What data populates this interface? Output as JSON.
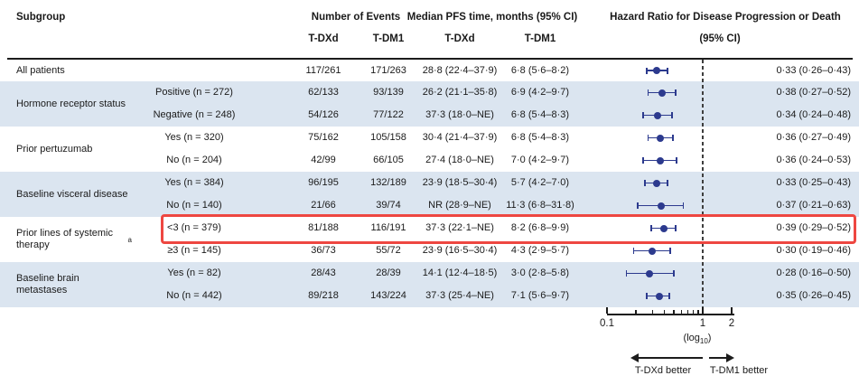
{
  "header": {
    "subgroup": "Subgroup",
    "events": "Number of Events",
    "median": "Median PFS time, months (95% CI)",
    "hazard": "Hazard Ratio for Disease Progression or Death",
    "hazard_sub": "(95% CI)",
    "col_tdxd": "T-DXd",
    "col_tdm1": "T-DM1"
  },
  "colors": {
    "band_blue": "#dbe5f0",
    "marker_navy": "#2c3a8e",
    "highlight_red": "#ee4741",
    "reference_dash": "#3e3e3e",
    "text": "#1a1a1a"
  },
  "chart_data": {
    "type": "scatter",
    "variant": "forest-plot",
    "x_axis": {
      "scale": "log10",
      "range": [
        0.1,
        2
      ],
      "ticks": [
        0.1,
        0.2,
        0.3,
        0.4,
        0.5,
        0.6,
        0.7,
        0.8,
        0.9,
        1,
        2
      ],
      "labeled_ticks": [
        "0.1",
        "1",
        "2"
      ],
      "reference_line": 1,
      "scale_note": "(log10)"
    },
    "groups": [
      {
        "label": "All patients",
        "label_sup": "",
        "shaded": false,
        "rows": [
          {
            "sublabel": "",
            "events_tdxd": "117/261",
            "events_tdm1": "171/263",
            "median_tdxd": "28·8 (22·4–37·9)",
            "median_tdm1": "6·8 (5·6–8·2)",
            "hr": 0.33,
            "ci_low": 0.26,
            "ci_high": 0.43,
            "hr_text": "0·33 (0·26–0·43)",
            "highlighted": false
          }
        ]
      },
      {
        "label": "Hormone receptor status",
        "label_sup": "",
        "shaded": true,
        "rows": [
          {
            "sublabel": "Positive (n = 272)",
            "events_tdxd": "62/133",
            "events_tdm1": "93/139",
            "median_tdxd": "26·2 (21·1–35·8)",
            "median_tdm1": "6·9 (4·2–9·7)",
            "hr": 0.38,
            "ci_low": 0.27,
            "ci_high": 0.52,
            "hr_text": "0·38 (0·27–0·52)",
            "highlighted": false
          },
          {
            "sublabel": "Negative (n = 248)",
            "events_tdxd": "54/126",
            "events_tdm1": "77/122",
            "median_tdxd": "37·3 (18·0–NE)",
            "median_tdm1": "6·8 (5·4–8·3)",
            "hr": 0.34,
            "ci_low": 0.24,
            "ci_high": 0.48,
            "hr_text": "0·34 (0·24–0·48)",
            "highlighted": false
          }
        ]
      },
      {
        "label": "Prior pertuzumab",
        "label_sup": "",
        "shaded": false,
        "rows": [
          {
            "sublabel": "Yes (n = 320)",
            "events_tdxd": "75/162",
            "events_tdm1": "105/158",
            "median_tdxd": "30·4 (21·4–37·9)",
            "median_tdm1": "6·8 (5·4–8·3)",
            "hr": 0.36,
            "ci_low": 0.27,
            "ci_high": 0.49,
            "hr_text": "0·36 (0·27–0·49)",
            "highlighted": false
          },
          {
            "sublabel": "No (n = 204)",
            "events_tdxd": "42/99",
            "events_tdm1": "66/105",
            "median_tdxd": "27·4 (18·0–NE)",
            "median_tdm1": "7·0 (4·2–9·7)",
            "hr": 0.36,
            "ci_low": 0.24,
            "ci_high": 0.53,
            "hr_text": "0·36 (0·24–0·53)",
            "highlighted": false
          }
        ]
      },
      {
        "label": "Baseline visceral disease",
        "label_sup": "",
        "shaded": true,
        "rows": [
          {
            "sublabel": "Yes (n = 384)",
            "events_tdxd": "96/195",
            "events_tdm1": "132/189",
            "median_tdxd": "23·9 (18·5–30·4)",
            "median_tdm1": "5·7 (4·2–7·0)",
            "hr": 0.33,
            "ci_low": 0.25,
            "ci_high": 0.43,
            "hr_text": "0·33 (0·25–0·43)",
            "highlighted": false
          },
          {
            "sublabel": "No (n = 140)",
            "events_tdxd": "21/66",
            "events_tdm1": "39/74",
            "median_tdxd": "NR (28·9–NE)",
            "median_tdm1": "11·3 (6·8–31·8)",
            "hr": 0.37,
            "ci_low": 0.21,
            "ci_high": 0.63,
            "hr_text": "0·37 (0·21–0·63)",
            "highlighted": false
          }
        ]
      },
      {
        "label": "Prior lines of systemic therapy",
        "label_sup": "a",
        "shaded": false,
        "rows": [
          {
            "sublabel": "<3 (n = 379)",
            "events_tdxd": "81/188",
            "events_tdm1": "116/191",
            "median_tdxd": "37·3 (22·1–NE)",
            "median_tdm1": "8·2 (6·8–9·9)",
            "hr": 0.39,
            "ci_low": 0.29,
            "ci_high": 0.52,
            "hr_text": "0·39 (0·29–0·52)",
            "highlighted": true
          },
          {
            "sublabel": "≥3 (n = 145)",
            "events_tdxd": "36/73",
            "events_tdm1": "55/72",
            "median_tdxd": "23·9 (16·5–30·4)",
            "median_tdm1": "4·3 (2·9–5·7)",
            "hr": 0.3,
            "ci_low": 0.19,
            "ci_high": 0.46,
            "hr_text": "0·30 (0·19–0·46)",
            "highlighted": false
          }
        ]
      },
      {
        "label": "Baseline brain metastases",
        "label_sup": "",
        "shaded": true,
        "rows": [
          {
            "sublabel": "Yes (n = 82)",
            "events_tdxd": "28/43",
            "events_tdm1": "28/39",
            "median_tdxd": "14·1 (12·4–18·5)",
            "median_tdm1": "3·0 (2·8–5·8)",
            "hr": 0.28,
            "ci_low": 0.16,
            "ci_high": 0.5,
            "hr_text": "0·28 (0·16–0·50)",
            "highlighted": false
          },
          {
            "sublabel": "No (n = 442)",
            "events_tdxd": "89/218",
            "events_tdm1": "143/224",
            "median_tdxd": "37·3 (25·4–NE)",
            "median_tdm1": "7·1 (5·6–9·7)",
            "hr": 0.35,
            "ci_low": 0.26,
            "ci_high": 0.45,
            "hr_text": "0·35 (0·26–0·45)",
            "highlighted": false
          }
        ]
      }
    ]
  },
  "axis_footer": {
    "tick_min": "0.1",
    "tick_one": "1",
    "tick_max": "2",
    "log_pre": "(log",
    "log_sub": "10",
    "log_post": ")",
    "left_better": "T-DXd better",
    "right_better": "T-DM1 better"
  }
}
